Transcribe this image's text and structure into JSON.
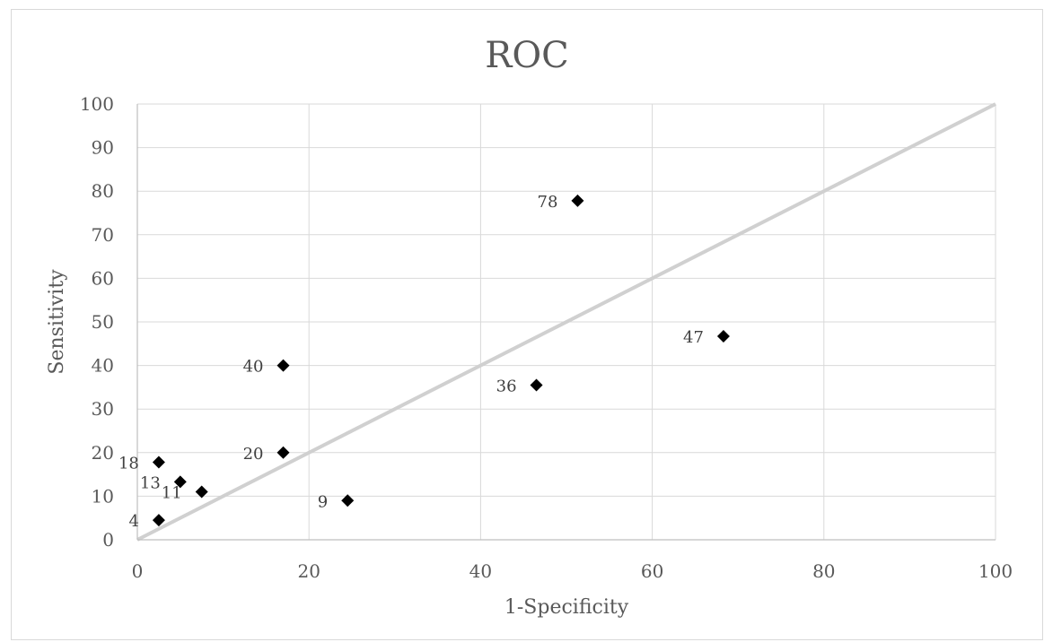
{
  "chart_data": {
    "type": "scatter",
    "title": "ROC",
    "xlabel": "1-Specificity",
    "ylabel": "Sensitivity",
    "xlim": [
      0,
      100
    ],
    "ylim": [
      0,
      100
    ],
    "x_ticks": [
      0,
      20,
      40,
      60,
      80,
      100
    ],
    "y_ticks": [
      0,
      10,
      20,
      30,
      40,
      50,
      60,
      70,
      80,
      90,
      100
    ],
    "grid": true,
    "reference_line": {
      "x": [
        0,
        100
      ],
      "y": [
        0,
        100
      ],
      "color": "#d0d0d0"
    },
    "marker": {
      "shape": "diamond",
      "color": "#000000"
    },
    "points": [
      {
        "x": 2.5,
        "y": 4.5,
        "label": "4"
      },
      {
        "x": 24.5,
        "y": 9,
        "label": "9"
      },
      {
        "x": 7.5,
        "y": 11,
        "label": "11"
      },
      {
        "x": 5,
        "y": 13.3,
        "label": "13"
      },
      {
        "x": 2.5,
        "y": 17.8,
        "label": "18"
      },
      {
        "x": 17,
        "y": 20,
        "label": "20"
      },
      {
        "x": 46.5,
        "y": 35.5,
        "label": "36"
      },
      {
        "x": 17,
        "y": 40,
        "label": "40"
      },
      {
        "x": 68.3,
        "y": 46.7,
        "label": "47"
      },
      {
        "x": 51.3,
        "y": 77.8,
        "label": "78"
      }
    ]
  }
}
